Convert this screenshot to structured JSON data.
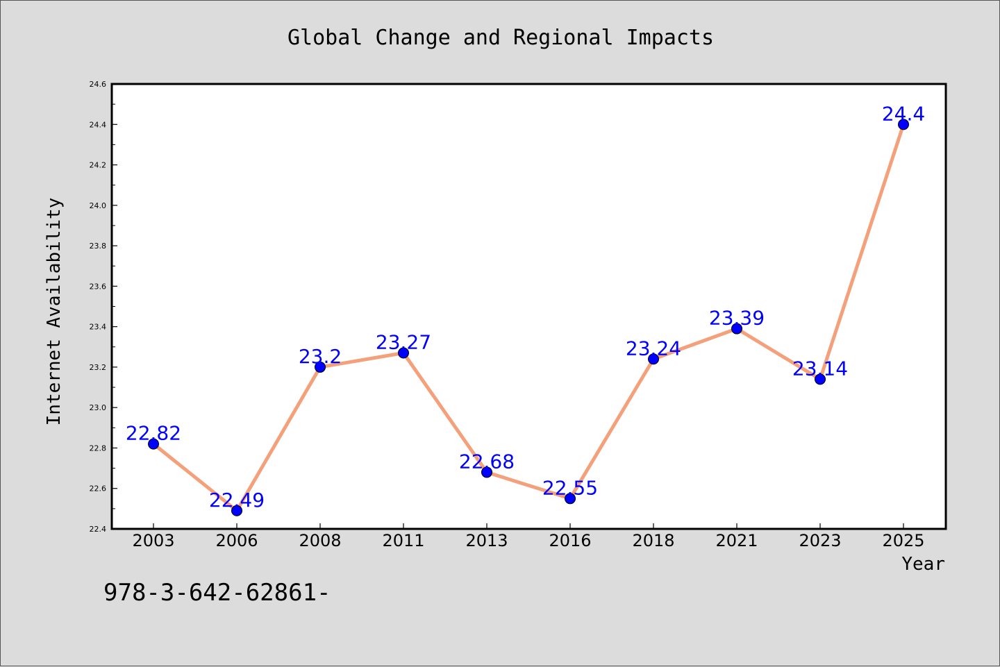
{
  "colors": {
    "background": "#dcdcdc",
    "plot_background": "#ffffff",
    "line": "#f4a07a",
    "marker": "#0000ff",
    "data_label": "#0000ff",
    "text": "#000000"
  },
  "chart_data": {
    "type": "line",
    "title": "Global Change and Regional Impacts",
    "xlabel": "Year",
    "ylabel": "Internet Availability",
    "categories": [
      "2003",
      "2006",
      "2008",
      "2011",
      "2013",
      "2016",
      "2018",
      "2021",
      "2023",
      "2025"
    ],
    "series": [
      {
        "values": [
          22.82,
          22.49,
          23.2,
          23.27,
          22.68,
          22.55,
          23.24,
          23.39,
          23.14,
          24.4
        ],
        "labels": [
          "22.82",
          "22.49",
          "23.2",
          "23.27",
          "22.68",
          "22.55",
          "23.24",
          "23.39",
          "23.14",
          "24.4"
        ]
      }
    ],
    "ylim": [
      22.4,
      24.6
    ],
    "yticks": [
      22.4,
      22.6,
      22.8,
      23.0,
      23.2,
      23.4,
      23.6,
      23.8,
      24.0,
      24.2,
      24.4,
      24.6
    ],
    "ytick_labels": [
      "22.4",
      "22.6",
      "22.8",
      "23.0",
      "23.2",
      "23.4",
      "23.6",
      "23.8",
      "24.0",
      "24.2",
      "24.4",
      "24.6"
    ],
    "grid": false,
    "legend": "none",
    "annotation": "978-3-642-62861-"
  }
}
